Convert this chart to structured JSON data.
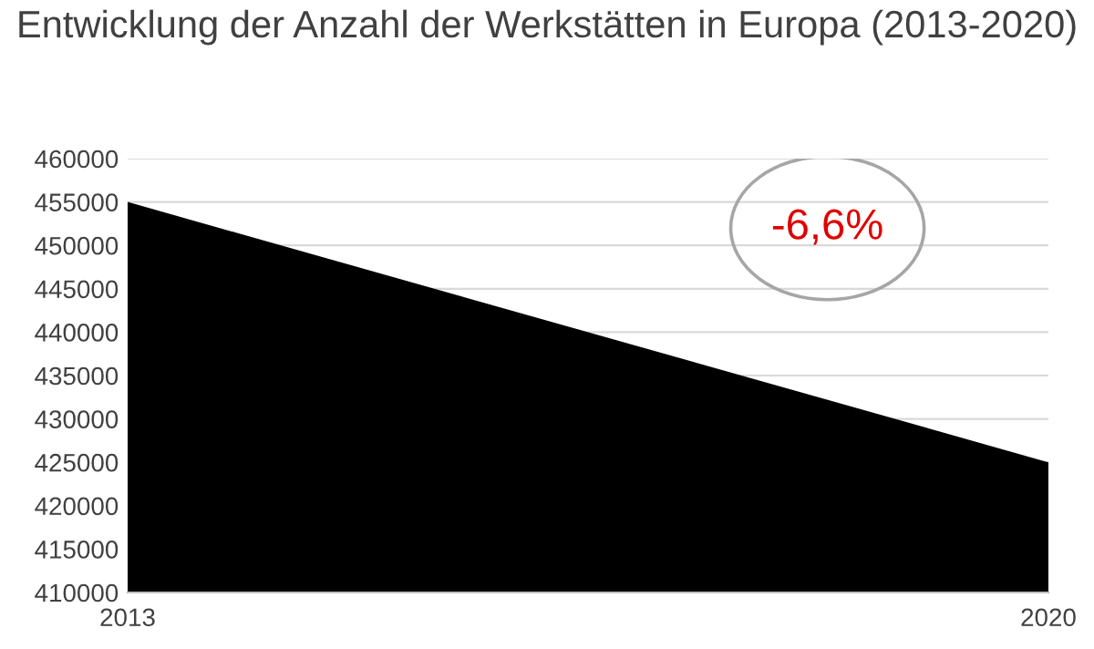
{
  "chart_data": {
    "type": "area",
    "title": "Entwicklung der Anzahl der Werkstätten in Europa (2013-2020)",
    "x": [
      2013,
      2020
    ],
    "series": [
      {
        "color": "#000000",
        "values": [
          455000,
          425000
        ]
      }
    ],
    "xlim": [
      2013,
      2020
    ],
    "xticks": [
      2013,
      2020
    ],
    "ylim": [
      410000,
      460000
    ],
    "yticks": [
      410000,
      415000,
      420000,
      425000,
      430000,
      435000,
      440000,
      445000,
      450000,
      455000,
      460000
    ],
    "grid": "y",
    "legend": false,
    "annotations": [
      "-6,6%"
    ]
  }
}
